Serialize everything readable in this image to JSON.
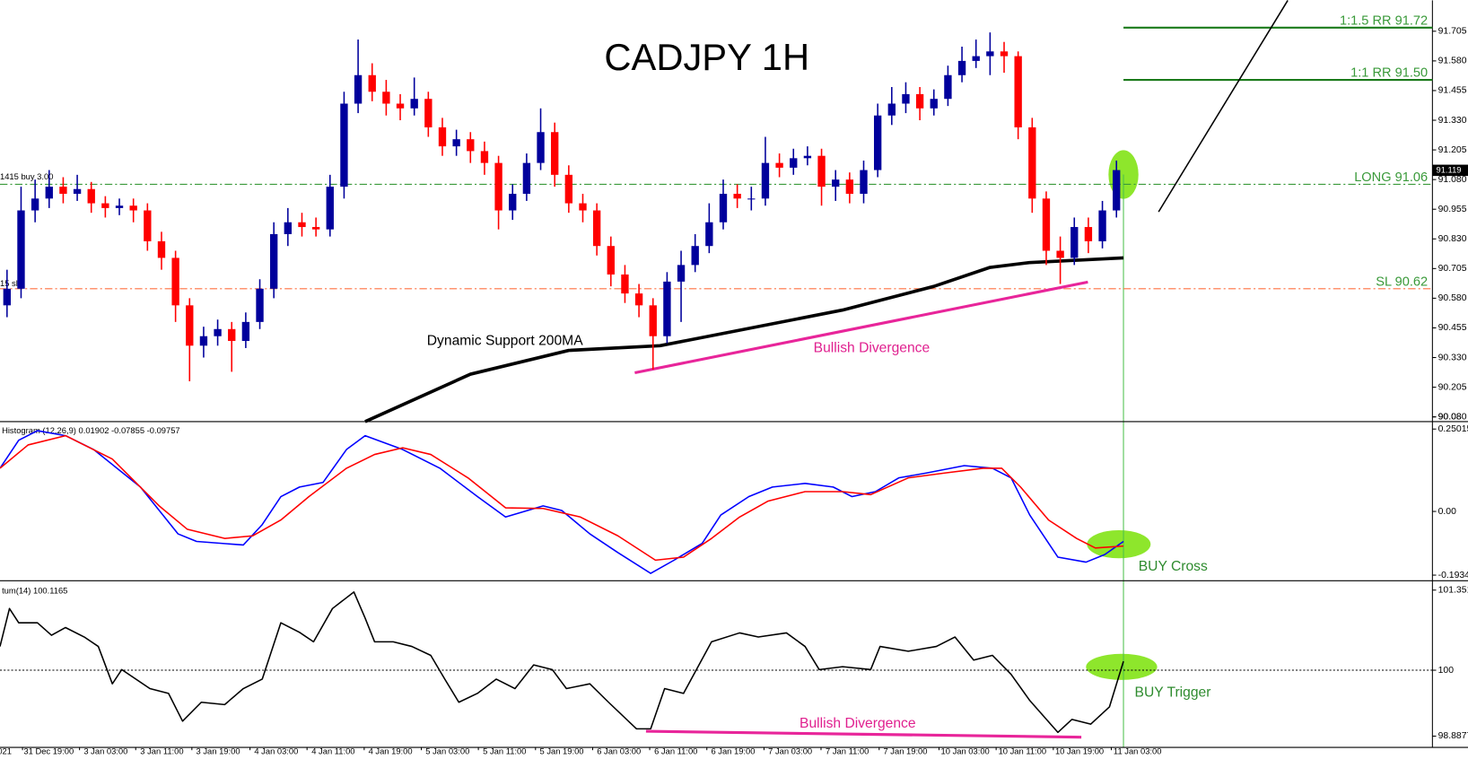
{
  "chart_data": [
    {
      "type": "candlestick",
      "title": "CADJPY 1H",
      "up_color": "#00009c",
      "down_color": "#ff0000",
      "xlim": [
        -0.5,
        101.5
      ],
      "ylim": [
        90.06,
        91.835
      ],
      "yticks": [
        90.08,
        {
          "value": 90.08,
          "label": "90.080"
        },
        90.205,
        {
          "value": 90.33,
          "label": "90.330"
        },
        90.455,
        {
          "value": 90.58,
          "label": "90.580"
        },
        90.705,
        {
          "value": 90.83,
          "label": "90.830"
        },
        90.955,
        {
          "value": 91.08,
          "label": "91.080"
        },
        91.205,
        {
          "value": 91.33,
          "label": "91.330"
        },
        91.455,
        {
          "value": 91.58,
          "label": "91.580"
        },
        91.705
      ],
      "candles": [
        [
          90.55,
          90.7,
          90.5,
          90.62
        ],
        [
          90.62,
          91.05,
          90.58,
          90.95
        ],
        [
          90.95,
          91.08,
          90.9,
          91.0
        ],
        [
          91.0,
          91.12,
          90.96,
          91.05
        ],
        [
          91.05,
          91.09,
          90.98,
          91.02
        ],
        [
          91.02,
          91.1,
          90.99,
          91.04
        ],
        [
          91.04,
          91.07,
          90.94,
          90.98
        ],
        [
          90.98,
          91.01,
          90.92,
          90.96
        ],
        [
          90.96,
          91.0,
          90.93,
          90.97
        ],
        [
          90.97,
          91.0,
          90.9,
          90.95
        ],
        [
          90.95,
          90.98,
          90.78,
          90.82
        ],
        [
          90.82,
          90.86,
          90.7,
          90.75
        ],
        [
          90.75,
          90.78,
          90.48,
          90.55
        ],
        [
          90.55,
          90.58,
          90.23,
          90.38
        ],
        [
          90.38,
          90.46,
          90.33,
          90.42
        ],
        [
          90.42,
          90.49,
          90.38,
          90.45
        ],
        [
          90.45,
          90.48,
          90.27,
          90.4
        ],
        [
          90.4,
          90.52,
          90.37,
          90.48
        ],
        [
          90.48,
          90.66,
          90.45,
          90.62
        ],
        [
          90.62,
          90.9,
          90.58,
          90.85
        ],
        [
          90.85,
          90.96,
          90.8,
          90.9
        ],
        [
          90.9,
          90.94,
          90.84,
          90.88
        ],
        [
          90.88,
          90.92,
          90.84,
          90.87
        ],
        [
          90.87,
          91.1,
          90.84,
          91.05
        ],
        [
          91.05,
          91.45,
          91.0,
          91.4
        ],
        [
          91.4,
          91.67,
          91.36,
          91.52
        ],
        [
          91.52,
          91.57,
          91.41,
          91.45
        ],
        [
          91.45,
          91.5,
          91.35,
          91.4
        ],
        [
          91.4,
          91.44,
          91.33,
          91.38
        ],
        [
          91.38,
          91.51,
          91.35,
          91.42
        ],
        [
          91.42,
          91.45,
          91.26,
          91.3
        ],
        [
          91.3,
          91.34,
          91.18,
          91.22
        ],
        [
          91.22,
          91.29,
          91.18,
          91.25
        ],
        [
          91.25,
          91.28,
          91.15,
          91.2
        ],
        [
          91.2,
          91.24,
          91.1,
          91.15
        ],
        [
          91.15,
          91.18,
          90.87,
          90.95
        ],
        [
          90.95,
          91.06,
          90.91,
          91.02
        ],
        [
          91.02,
          91.19,
          90.99,
          91.15
        ],
        [
          91.15,
          91.38,
          91.12,
          91.28
        ],
        [
          91.28,
          91.32,
          91.05,
          91.1
        ],
        [
          91.1,
          91.14,
          90.94,
          90.98
        ],
        [
          90.98,
          91.02,
          90.9,
          90.95
        ],
        [
          90.95,
          90.98,
          90.76,
          90.8
        ],
        [
          90.8,
          90.84,
          90.63,
          90.68
        ],
        [
          90.68,
          90.72,
          90.56,
          90.6
        ],
        [
          90.6,
          90.64,
          90.5,
          90.55
        ],
        [
          90.55,
          90.58,
          90.28,
          90.42
        ],
        [
          90.42,
          90.69,
          90.39,
          90.65
        ],
        [
          90.65,
          90.78,
          90.48,
          90.72
        ],
        [
          90.72,
          90.85,
          90.69,
          90.8
        ],
        [
          90.8,
          90.98,
          90.77,
          90.9
        ],
        [
          90.9,
          91.08,
          90.87,
          91.02
        ],
        [
          91.02,
          91.06,
          90.96,
          91.0
        ],
        [
          91.0,
          91.05,
          90.95,
          91.0
        ],
        [
          91.0,
          91.26,
          90.97,
          91.15
        ],
        [
          91.15,
          91.19,
          91.09,
          91.13
        ],
        [
          91.13,
          91.21,
          91.1,
          91.17
        ],
        [
          91.17,
          91.22,
          91.14,
          91.18
        ],
        [
          91.18,
          91.21,
          90.97,
          91.05
        ],
        [
          91.05,
          91.12,
          90.99,
          91.08
        ],
        [
          91.08,
          91.11,
          90.98,
          91.02
        ],
        [
          91.02,
          91.16,
          90.98,
          91.12
        ],
        [
          91.12,
          91.4,
          91.09,
          91.35
        ],
        [
          91.35,
          91.47,
          91.31,
          91.4
        ],
        [
          91.4,
          91.49,
          91.36,
          91.44
        ],
        [
          91.44,
          91.47,
          91.33,
          91.38
        ],
        [
          91.38,
          91.46,
          91.35,
          91.42
        ],
        [
          91.42,
          91.56,
          91.39,
          91.52
        ],
        [
          91.52,
          91.64,
          91.49,
          91.58
        ],
        [
          91.58,
          91.67,
          91.55,
          91.6
        ],
        [
          91.6,
          91.7,
          91.52,
          91.62
        ],
        [
          91.62,
          91.66,
          91.53,
          91.6
        ],
        [
          91.6,
          91.62,
          91.25,
          91.3
        ],
        [
          91.3,
          91.34,
          90.94,
          91.0
        ],
        [
          91.0,
          91.03,
          90.72,
          90.78
        ],
        [
          90.78,
          90.84,
          90.64,
          90.75
        ],
        [
          90.75,
          90.92,
          90.72,
          90.88
        ],
        [
          90.88,
          90.92,
          90.77,
          90.82
        ],
        [
          90.82,
          90.99,
          90.79,
          90.95
        ],
        [
          90.95,
          91.16,
          90.92,
          91.12
        ]
      ],
      "last_price": 91.119,
      "levels": [
        {
          "label": "1:1.5 RR 91.72",
          "value": 91.72,
          "color": "#1a7a1a",
          "style": "solid",
          "x_start": 79.5
        },
        {
          "label": "1:1 RR 91.50",
          "value": 91.5,
          "color": "#1a7a1a",
          "style": "solid",
          "x_start": 79.5
        },
        {
          "label": "LONG 91.06",
          "value": 91.06,
          "color": "#3a9a3a",
          "style": "dashdot",
          "x_start": -0.5
        },
        {
          "label": "SL 90.62",
          "value": 90.62,
          "color": "#ff7040",
          "style": "dashdot",
          "x_start": -0.5
        }
      ],
      "overlays": [
        {
          "color": "#000000",
          "width": 3.5,
          "x": [
            25.5,
            33,
            40,
            46.5,
            53,
            59.5,
            66,
            70,
            72.8,
            79.5
          ],
          "values": [
            90.06,
            90.26,
            90.36,
            90.38,
            90.455,
            90.53,
            90.63,
            90.71,
            90.73,
            90.75
          ]
        },
        {
          "color": "#e8259a",
          "width": 3,
          "x": [
            44.7,
            76.97
          ],
          "values": [
            90.266,
            90.648
          ]
        },
        {
          "color": "#000000",
          "width": 1.5,
          "x": [
            82,
            91.2
          ],
          "values": [
            90.944,
            91.835
          ]
        }
      ],
      "annotations": [
        "Dynamic Support 200MA",
        "Bullish Divergence",
        "1415 buy 3.00",
        "15 sl"
      ]
    },
    {
      "type": "line",
      "label": "Histogram (12,26,9) 0.01902 -0.07855 -0.09757",
      "xlim": [
        -0.5,
        101.5
      ],
      "ylim": [
        -0.2105,
        0.267
      ],
      "yticks": [
        {
          "value": -0.19341,
          "label": "-0.19341"
        },
        {
          "value": 0,
          "label": "0.00"
        },
        0.25015
      ],
      "series": [
        {
          "color": "#0000ff",
          "x": [
            -0.5,
            0.83,
            2.17,
            4.17,
            6.17,
            9.5,
            12.17,
            13.5,
            16.83,
            18.17,
            19.5,
            20.83,
            22.5,
            24.17,
            25.5,
            28.17,
            30.83,
            33.5,
            35.5,
            38.17,
            39.5,
            41.5,
            43.5,
            45.83,
            47.5,
            49.5,
            50.83,
            52.83,
            54.5,
            56.83,
            58.83,
            60.17,
            61.83,
            63.5,
            65.5,
            68.17,
            70.17,
            71.5,
            72.83,
            74.83,
            76.83,
            78.17,
            79.5
          ],
          "values": [
            0.131,
            0.216,
            0.245,
            0.23,
            0.188,
            0.074,
            -0.068,
            -0.091,
            -0.102,
            -0.04,
            0.045,
            0.074,
            0.088,
            0.188,
            0.23,
            0.188,
            0.131,
            0.045,
            -0.017,
            0.017,
            0.003,
            -0.068,
            -0.125,
            -0.188,
            -0.148,
            -0.097,
            -0.011,
            0.045,
            0.074,
            0.085,
            0.074,
            0.045,
            0.06,
            0.102,
            0.117,
            0.139,
            0.131,
            0.102,
            -0.011,
            -0.139,
            -0.154,
            -0.131,
            -0.091
          ]
        },
        {
          "color": "#ff0000",
          "x": [
            -0.5,
            1.5,
            4.17,
            7.5,
            10.83,
            12.83,
            15.5,
            17.5,
            19.5,
            21.5,
            24.17,
            26.17,
            28.17,
            30.17,
            32.83,
            35.5,
            38.17,
            40.83,
            43.5,
            46.17,
            48.17,
            50.17,
            52.17,
            54.17,
            56.83,
            59.5,
            61.5,
            64.17,
            66.83,
            69.5,
            70.83,
            72.17,
            74.17,
            76.17,
            77.5,
            79.5
          ],
          "values": [
            0.131,
            0.202,
            0.23,
            0.159,
            0.017,
            -0.054,
            -0.082,
            -0.074,
            -0.026,
            0.045,
            0.131,
            0.173,
            0.193,
            0.173,
            0.102,
            0.011,
            0.009,
            -0.017,
            -0.074,
            -0.148,
            -0.139,
            -0.082,
            -0.017,
            0.031,
            0.06,
            0.06,
            0.051,
            0.102,
            0.117,
            0.131,
            0.131,
            0.074,
            -0.026,
            -0.082,
            -0.111,
            -0.105
          ]
        }
      ],
      "annotations": [
        "BUY Cross"
      ]
    },
    {
      "type": "line",
      "label": "tum(14) 100.1165",
      "xlim": [
        -0.5,
        101.5
      ],
      "ylim": [
        98.698,
        101.478
      ],
      "yticks": [
        98.8877,
        100,
        101.3519
      ],
      "reference_line": 100,
      "series": [
        {
          "color": "#000000",
          "x": [
            -0.5,
            0.17,
            0.83,
            2.17,
            3.17,
            4.17,
            5.5,
            6.5,
            7.5,
            8.17,
            10.17,
            11.5,
            12.5,
            13.83,
            15.5,
            16.83,
            18.17,
            19.5,
            20.83,
            21.83,
            23.17,
            24.7,
            25.5,
            26.17,
            27.5,
            28.83,
            30.17,
            31.17,
            32.17,
            33.5,
            34.83,
            36.17,
            37.5,
            38.83,
            39.83,
            41.5,
            42.83,
            44.83,
            45.83,
            46.83,
            48.17,
            50.17,
            52.17,
            53.5,
            55.5,
            56.83,
            57.83,
            59.5,
            61.5,
            62.17,
            64.17,
            66.17,
            67.5,
            68.83,
            70.17,
            71.5,
            72.83,
            74.83,
            75.83,
            77.17,
            78.5,
            79.5
          ],
          "values": [
            100.4,
            101.04,
            100.8,
            100.8,
            100.59,
            100.72,
            100.56,
            100.4,
            99.77,
            100.01,
            99.69,
            99.61,
            99.14,
            99.46,
            99.42,
            99.69,
            99.85,
            100.8,
            100.64,
            100.48,
            101.04,
            101.32,
            100.88,
            100.48,
            100.48,
            100.4,
            100.25,
            99.85,
            99.46,
            99.61,
            99.85,
            99.69,
            100.09,
            100.01,
            99.69,
            99.77,
            99.46,
            99.01,
            99.01,
            99.69,
            99.61,
            100.48,
            100.63,
            100.56,
            100.63,
            100.4,
            100.01,
            100.06,
            100.01,
            100.4,
            100.32,
            100.4,
            100.56,
            100.17,
            100.25,
            99.93,
            99.49,
            98.95,
            99.17,
            99.09,
            99.38,
            100.15
          ]
        }
      ],
      "overlays": [
        {
          "color": "#e8259a",
          "width": 3,
          "x": [
            45.5,
            76.5
          ],
          "values": [
            98.97,
            98.87
          ]
        }
      ],
      "xticks": [
        {
          "value": -0.17,
          "label": "021"
        },
        {
          "value": 2.97,
          "label": "31 Dec 19:00"
        },
        {
          "value": 7.03,
          "label": "3 Jan 03:00"
        },
        {
          "value": 11.03,
          "label": "3 Jan 11:00"
        },
        {
          "value": 15.03,
          "label": "3 Jan 19:00"
        },
        {
          "value": 19.17,
          "label": "4 Jan 03:00"
        },
        {
          "value": 23.23,
          "label": "4 Jan 11:00"
        },
        {
          "value": 27.3,
          "label": "4 Jan 19:00"
        },
        {
          "value": 31.37,
          "label": "5 Jan 03:00"
        },
        {
          "value": 35.43,
          "label": "5 Jan 11:00"
        },
        {
          "value": 39.5,
          "label": "5 Jan 19:00"
        },
        {
          "value": 43.57,
          "label": "6 Jan 03:00"
        },
        {
          "value": 47.63,
          "label": "6 Jan 11:00"
        },
        {
          "value": 51.7,
          "label": "6 Jan 19:00"
        },
        {
          "value": 55.77,
          "label": "7 Jan 03:00"
        },
        {
          "value": 59.83,
          "label": "7 Jan 11:00"
        },
        {
          "value": 63.97,
          "label": "7 Jan 19:00"
        },
        {
          "value": 68.23,
          "label": "10 Jan 03:00"
        },
        {
          "value": 72.3,
          "label": "10 Jan 11:00"
        },
        {
          "value": 76.37,
          "label": "10 Jan 19:00"
        },
        {
          "value": 80.5,
          "label": "11 Jan 03:00"
        }
      ],
      "annotations": [
        "Bullish Divergence",
        "BUY Trigger"
      ]
    }
  ]
}
